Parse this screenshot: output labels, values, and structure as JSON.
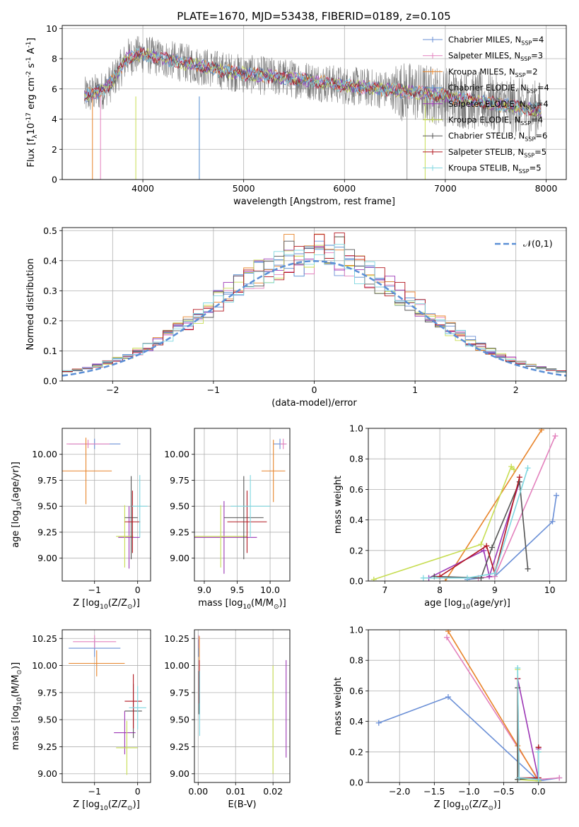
{
  "figure": {
    "title": "PLATE=1670, MJD=53438, FIBERID=0189, z=0.105"
  },
  "colors": {
    "Chabrier MILES": "#6a8fd6",
    "Salpeter MILES": "#e381bd",
    "Kroupa MILES": "#e8842a",
    "Chabrier ELODIE": "#4f8ad0",
    "Salpeter ELODIE": "#9c36b5",
    "Kroupa ELODIE": "#c7dd52",
    "Chabrier STELIB": "#555555",
    "Salpeter STELIB": "#b2161f",
    "Kroupa STELIB": "#7fd7e0"
  },
  "chart_data": [
    {
      "id": "spectrum",
      "type": "line",
      "xlabel": "wavelength [Angstrom, rest frame]",
      "ylabel": "Flux [f$_\\lambda$10$^{-17}$ erg cm$^{-2}$ s$^{-1}$ A$^{-1}$]",
      "xlim": [
        3200,
        8200
      ],
      "ylim": [
        0,
        10.2
      ],
      "xticks": [
        4000,
        5000,
        6000,
        7000,
        8000
      ],
      "yticks": [
        0,
        2,
        4,
        6,
        8,
        10
      ],
      "observed_envelope": {
        "x": [
          3420,
          3600,
          3700,
          3850,
          4000,
          4200,
          4500,
          4800,
          5000,
          5300,
          5600,
          5900,
          6200,
          6500,
          6800,
          7000,
          7300,
          7600,
          7900
        ],
        "y": [
          5.5,
          5.9,
          6.5,
          8.1,
          8.3,
          8.0,
          7.6,
          7.2,
          7.0,
          6.8,
          6.6,
          6.3,
          6.1,
          5.9,
          5.7,
          5.5,
          5.2,
          4.9,
          4.6
        ]
      },
      "legend": [
        "Chabrier MILES, N$_{SSP}$=4",
        "Salpeter MILES, N$_{SSP}$=3",
        "Kroupa MILES, N$_{SSP}$=2",
        "Chabrier ELODIE, N$_{SSP}$=4",
        "Salpeter ELODIE, N$_{SSP}$=4",
        "Kroupa ELODIE, N$_{SSP}$=4",
        "Chabrier STELIB, N$_{SSP}$=6",
        "Salpeter STELIB, N$_{SSP}$=5",
        "Kroupa STELIB, N$_{SSP}$=5"
      ],
      "legend_loc": "upper right"
    },
    {
      "id": "residuals",
      "type": "histogram",
      "xlabel": "(data-model)/error",
      "ylabel": "Normed distribution",
      "xlim": [
        -2.5,
        2.5
      ],
      "ylim": [
        0,
        0.51
      ],
      "xticks": [
        -2,
        -1,
        0,
        1,
        2
      ],
      "yticks": [
        0.0,
        0.1,
        0.2,
        0.3,
        0.4,
        0.5
      ],
      "bin_width": 0.1,
      "reference_curve": {
        "name": "$\\mathcal{N}(0,1)$",
        "style": "dashed",
        "mean": 0,
        "sigma": 1
      },
      "legend_loc": "upper right"
    },
    {
      "id": "age_vs_Z",
      "type": "errorbar",
      "xlabel": "Z [log$_{10}$(Z/Z$_\\odot$)]",
      "ylabel": "age  [log$_{10}$(age/yr)]",
      "xlim": [
        -1.75,
        0.3
      ],
      "ylim": [
        8.78,
        10.25
      ],
      "xticks": [
        -1,
        0
      ],
      "yticks": [
        9.0,
        9.25,
        9.5,
        9.75,
        10.0
      ],
      "points": [
        {
          "model": "Chabrier MILES",
          "x": -1.0,
          "xerr": 0.6,
          "y": 10.1,
          "yerr": 0.05
        },
        {
          "model": "Salpeter MILES",
          "x": -1.15,
          "xerr": 0.5,
          "y": 10.1,
          "yerr": 0.04
        },
        {
          "model": "Kroupa MILES",
          "x": -1.2,
          "xerr": 0.6,
          "y": 9.84,
          "yerr": 0.32
        },
        {
          "model": "Salpeter ELODIE",
          "x": -0.2,
          "xerr": 0.25,
          "y": 9.2,
          "yerr": 0.3
        },
        {
          "model": "Kroupa ELODIE",
          "x": -0.3,
          "xerr": 0.2,
          "y": 9.21,
          "yerr": 0.3
        },
        {
          "model": "Chabrier STELIB",
          "x": -0.15,
          "xerr": 0.15,
          "y": 9.39,
          "yerr": 0.4
        },
        {
          "model": "Salpeter STELIB",
          "x": -0.12,
          "xerr": 0.18,
          "y": 9.35,
          "yerr": 0.3
        },
        {
          "model": "Kroupa STELIB",
          "x": 0.05,
          "xerr": 0.18,
          "y": 9.5,
          "yerr": 0.3
        }
      ]
    },
    {
      "id": "age_vs_mass",
      "type": "errorbar",
      "xlabel": "mass [log$_{10}$(M/M$_\\odot$)]",
      "ylabel": "",
      "xlim": [
        8.85,
        10.3
      ],
      "ylim": [
        8.78,
        10.25
      ],
      "xticks": [
        9.0,
        9.5,
        10.0
      ],
      "yticks": [
        9.0,
        9.25,
        9.5,
        9.75,
        10.0
      ],
      "points": [
        {
          "model": "Chabrier MILES",
          "x": 10.15,
          "xerr": 0.1,
          "y": 10.1,
          "yerr": 0.05
        },
        {
          "model": "Salpeter MILES",
          "x": 10.2,
          "xerr": 0.05,
          "y": 10.1,
          "yerr": 0.05
        },
        {
          "model": "Kroupa MILES",
          "x": 10.05,
          "xerr": 0.18,
          "y": 9.84,
          "yerr": 0.3
        },
        {
          "model": "Salpeter ELODIE",
          "x": 9.3,
          "xerr": 0.5,
          "y": 9.2,
          "yerr": 0.35
        },
        {
          "model": "Kroupa ELODIE",
          "x": 9.25,
          "xerr": 0.4,
          "y": 9.21,
          "yerr": 0.3
        },
        {
          "model": "Chabrier STELIB",
          "x": 9.6,
          "xerr": 0.3,
          "y": 9.39,
          "yerr": 0.4
        },
        {
          "model": "Salpeter STELIB",
          "x": 9.65,
          "xerr": 0.3,
          "y": 9.35,
          "yerr": 0.3
        },
        {
          "model": "Kroupa STELIB",
          "x": 9.7,
          "xerr": 0.3,
          "y": 9.5,
          "yerr": 0.3
        }
      ]
    },
    {
      "id": "weight_vs_age",
      "type": "line",
      "xlabel": "age  [log$_{10}$(age/yr)]",
      "ylabel": "mass weight",
      "xlim": [
        6.7,
        10.3
      ],
      "ylim": [
        0,
        1.0
      ],
      "xticks": [
        7,
        8,
        9,
        10
      ],
      "yticks": [
        0.0,
        0.2,
        0.4,
        0.6,
        0.8,
        1.0
      ],
      "series": [
        {
          "model": "Chabrier MILES",
          "x": [
            8.5,
            9.0,
            10.05,
            10.12
          ],
          "y": [
            0.01,
            0.03,
            0.39,
            0.56
          ]
        },
        {
          "model": "Salpeter MILES",
          "x": [
            8.7,
            9.0,
            10.1
          ],
          "y": [
            0.02,
            0.03,
            0.95
          ]
        },
        {
          "model": "Kroupa MILES",
          "x": [
            8.1,
            9.85
          ],
          "y": [
            0.0,
            0.99
          ]
        },
        {
          "model": "Salpeter ELODIE",
          "x": [
            7.8,
            8.8,
            8.9,
            9.45
          ],
          "y": [
            0.02,
            0.2,
            0.03,
            0.65
          ]
        },
        {
          "model": "Kroupa ELODIE",
          "x": [
            6.8,
            8.75,
            9.3,
            9.35
          ],
          "y": [
            0.01,
            0.24,
            0.75,
            0.73
          ]
        },
        {
          "model": "Chabrier STELIB",
          "x": [
            7.9,
            8.75,
            8.95,
            9.45,
            9.6
          ],
          "y": [
            0.03,
            0.02,
            0.22,
            0.65,
            0.08
          ]
        },
        {
          "model": "Salpeter STELIB",
          "x": [
            8.0,
            8.85,
            9.0,
            9.45
          ],
          "y": [
            0.03,
            0.23,
            0.05,
            0.68
          ]
        },
        {
          "model": "Kroupa STELIB",
          "x": [
            7.7,
            8.5,
            9.0,
            9.6
          ],
          "y": [
            0.02,
            0.02,
            0.05,
            0.74
          ]
        }
      ]
    },
    {
      "id": "mass_vs_Z",
      "type": "errorbar",
      "xlabel": "Z [log$_{10}$(Z/Z$_\\odot$)]",
      "ylabel": "mass [log$_{10}$(M/M$_\\odot$)]",
      "xlim": [
        -1.75,
        0.3
      ],
      "ylim": [
        8.92,
        10.33
      ],
      "xticks": [
        -1,
        0
      ],
      "yticks": [
        9.0,
        9.25,
        9.5,
        9.75,
        10.0,
        10.25
      ],
      "points": [
        {
          "model": "Chabrier MILES",
          "x": -1.0,
          "xerr": 0.6,
          "y": 10.16,
          "yerr": 0.08
        },
        {
          "model": "Salpeter MILES",
          "x": -1.0,
          "xerr": 0.5,
          "y": 10.22,
          "yerr": 0.06
        },
        {
          "model": "Kroupa MILES",
          "x": -0.95,
          "xerr": 0.65,
          "y": 10.02,
          "yerr": 0.12
        },
        {
          "model": "Salpeter ELODIE",
          "x": -0.3,
          "xerr": 0.25,
          "y": 9.38,
          "yerr": 0.2
        },
        {
          "model": "Kroupa ELODIE",
          "x": -0.25,
          "xerr": 0.25,
          "y": 9.24,
          "yerr": 0.25
        },
        {
          "model": "Chabrier STELIB",
          "x": -0.1,
          "xerr": 0.2,
          "y": 9.58,
          "yerr": 0.25
        },
        {
          "model": "Salpeter STELIB",
          "x": -0.1,
          "xerr": 0.2,
          "y": 9.67,
          "yerr": 0.25
        },
        {
          "model": "Kroupa STELIB",
          "x": 0.0,
          "xerr": 0.2,
          "y": 9.61,
          "yerr": 0.2
        }
      ]
    },
    {
      "id": "mass_vs_ebv",
      "type": "errorbar",
      "xlabel": "E(B-V)",
      "ylabel": "",
      "xlim": [
        -0.001,
        0.0245
      ],
      "ylim": [
        8.92,
        10.33
      ],
      "xticks": [
        0.0,
        0.01,
        0.02
      ],
      "yticks": [
        9.0,
        9.25,
        9.5,
        9.75,
        10.0,
        10.25
      ],
      "points": [
        {
          "model": "Chabrier MILES",
          "x": 0.0001,
          "y": 10.16,
          "yerr": 0.08
        },
        {
          "model": "Salpeter MILES",
          "x": 0.0002,
          "y": 10.22,
          "yerr": 0.06
        },
        {
          "model": "Kroupa MILES",
          "x": 0.0003,
          "y": 10.02,
          "yerr": 0.25
        },
        {
          "model": "Salpeter ELODIE",
          "x": 0.0235,
          "y": 9.6,
          "yerr": 0.45
        },
        {
          "model": "Kroupa ELODIE",
          "x": 0.02,
          "y": 9.5,
          "yerr": 0.5
        },
        {
          "model": "Chabrier STELIB",
          "x": 0.0002,
          "y": 9.75,
          "yerr": 0.2
        },
        {
          "model": "Salpeter STELIB",
          "x": 0.0003,
          "y": 9.85,
          "yerr": 0.2
        },
        {
          "model": "Kroupa STELIB",
          "x": 0.0004,
          "y": 9.65,
          "yerr": 0.3
        }
      ]
    },
    {
      "id": "weight_vs_Z",
      "type": "line",
      "xlabel": "Z [log$_{10}$(Z/Z$_\\odot$)]",
      "ylabel": "mass weight",
      "xlim": [
        -2.45,
        0.4
      ],
      "ylim": [
        0,
        1.0
      ],
      "xticks": [
        -2.0,
        -1.5,
        -1.0,
        -0.5,
        0.0
      ],
      "yticks": [
        0.0,
        0.2,
        0.4,
        0.6,
        0.8,
        1.0
      ],
      "series": [
        {
          "model": "Chabrier MILES",
          "x": [
            -2.3,
            -1.3,
            0.0,
            0.3
          ],
          "y": [
            0.39,
            0.56,
            0.01,
            0.03
          ]
        },
        {
          "model": "Salpeter MILES",
          "x": [
            -1.32,
            0.0,
            0.3
          ],
          "y": [
            0.95,
            0.02,
            0.03
          ]
        },
        {
          "model": "Kroupa MILES",
          "x": [
            -1.3,
            -0.3,
            0.0
          ],
          "y": [
            0.99,
            0.24,
            0.01
          ]
        },
        {
          "model": "Salpeter ELODIE",
          "x": [
            -0.3,
            0.0,
            0.0
          ],
          "y": [
            0.68,
            0.02,
            0.22
          ]
        },
        {
          "model": "Kroupa ELODIE",
          "x": [
            -0.3,
            -0.3,
            0.0,
            0.0
          ],
          "y": [
            0.74,
            0.02,
            0.01,
            0.2
          ]
        },
        {
          "model": "Chabrier STELIB",
          "x": [
            -0.3,
            -0.3,
            0.0,
            0.0
          ],
          "y": [
            0.62,
            0.02,
            0.03,
            0.23
          ]
        },
        {
          "model": "Salpeter STELIB",
          "x": [
            -0.3,
            -0.28,
            0.0,
            0.0
          ],
          "y": [
            0.68,
            0.03,
            0.03,
            0.23
          ]
        },
        {
          "model": "Kroupa STELIB",
          "x": [
            -0.3,
            -0.28,
            0.0,
            0.0
          ],
          "y": [
            0.75,
            0.03,
            0.02,
            0.2
          ]
        }
      ]
    }
  ]
}
